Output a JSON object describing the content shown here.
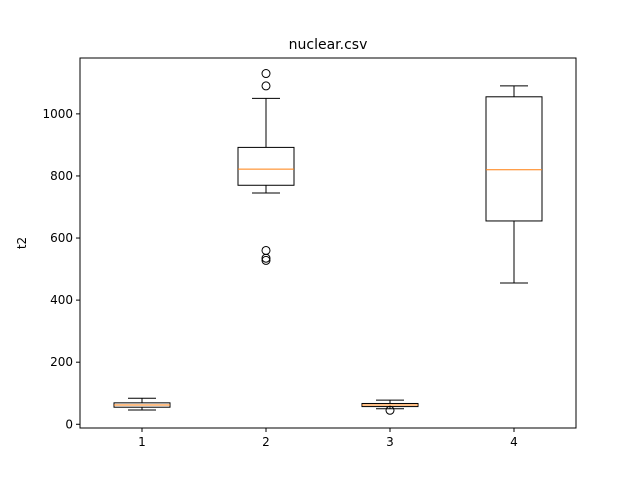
{
  "chart_data": {
    "type": "boxplot",
    "title": "nuclear.csv",
    "xlabel": "",
    "ylabel": "t2",
    "categories": [
      "1",
      "2",
      "3",
      "4"
    ],
    "ylim": [
      -12,
      1180
    ],
    "yticks": [
      0,
      200,
      400,
      600,
      800,
      1000
    ],
    "grid": false,
    "colors": {
      "box": "#000000",
      "median": "#ff7f0e",
      "outlier": "#000000"
    },
    "boxes": [
      {
        "category": "1",
        "whisker_low": 46,
        "q1": 55,
        "median": 62,
        "q3": 69,
        "whisker_high": 84,
        "outliers": []
      },
      {
        "category": "2",
        "whisker_low": 745,
        "q1": 770,
        "median": 822,
        "q3": 892,
        "whisker_high": 1050,
        "outliers": [
          1130,
          1090,
          560,
          535,
          528
        ]
      },
      {
        "category": "3",
        "whisker_low": 50,
        "q1": 57,
        "median": 62,
        "q3": 67,
        "whisker_high": 78,
        "outliers": [
          45
        ]
      },
      {
        "category": "4",
        "whisker_low": 455,
        "q1": 655,
        "median": 820,
        "q3": 1055,
        "whisker_high": 1090,
        "outliers": []
      }
    ]
  }
}
